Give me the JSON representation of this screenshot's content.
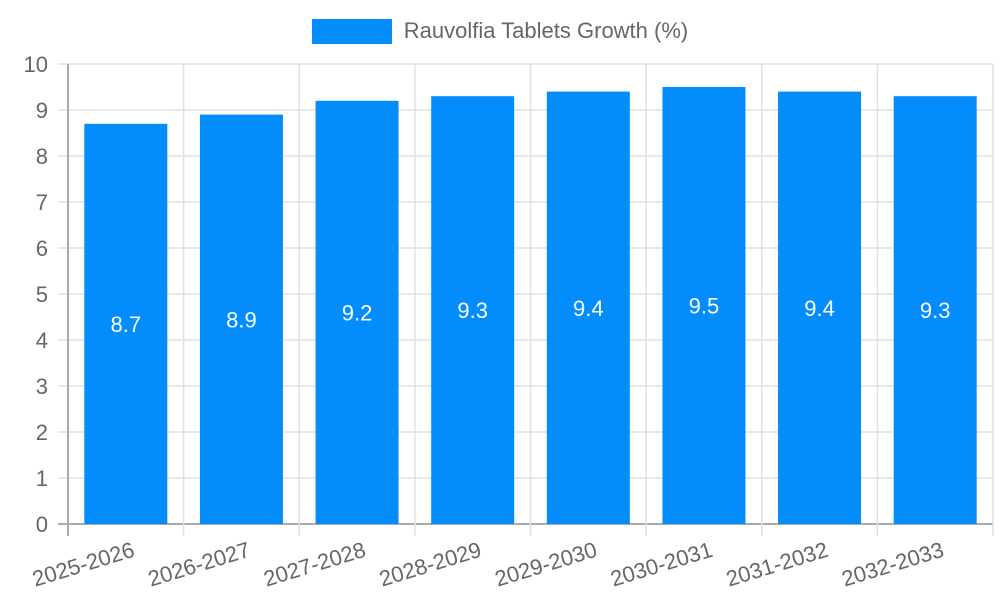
{
  "chart_data": {
    "type": "bar",
    "title": "",
    "legend": [
      "Rauvolfia Tablets Growth (%)"
    ],
    "legend_position": "top",
    "categories": [
      "2025-2026",
      "2026-2027",
      "2027-2028",
      "2028-2029",
      "2029-2030",
      "2030-2031",
      "2031-2032",
      "2032-2033"
    ],
    "series": [
      {
        "name": "Rauvolfia Tablets Growth (%)",
        "values": [
          8.7,
          8.9,
          9.2,
          9.3,
          9.4,
          9.5,
          9.4,
          9.3
        ],
        "color": "#038cfc"
      }
    ],
    "data_labels": [
      "8.7",
      "8.9",
      "9.2",
      "9.3",
      "9.4",
      "9.5",
      "9.4",
      "9.3"
    ],
    "xlabel": "",
    "ylabel": "",
    "ylim": [
      0,
      10
    ],
    "yticks": [
      0,
      1,
      2,
      3,
      4,
      5,
      6,
      7,
      8,
      9,
      10
    ],
    "grid": true
  },
  "legend": {
    "label": "Rauvolfia Tablets Growth (%)",
    "color": "#038cfc"
  }
}
